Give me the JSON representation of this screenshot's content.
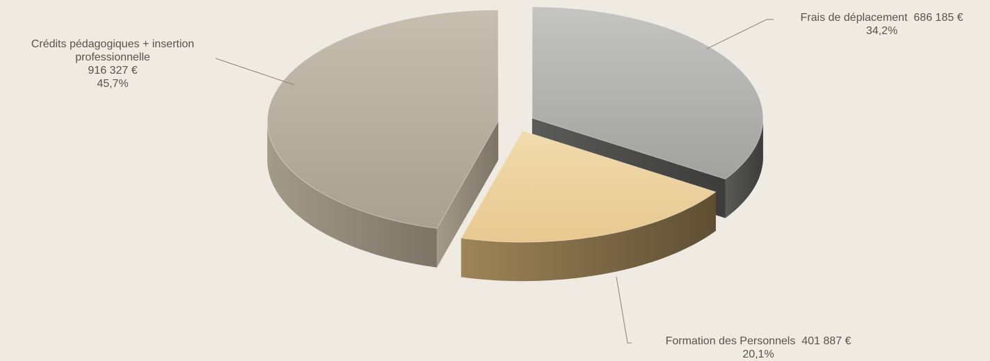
{
  "chart_data": {
    "type": "pie",
    "style": "3d-exploded",
    "slices": [
      {
        "name_lines": [
          "Crédits pédagogiques + insertion",
          "professionnelle"
        ],
        "amount": "916 327 €",
        "percent_label": "45,7%",
        "value": 916327,
        "percent": 45.7,
        "color": "#bcb2a3"
      },
      {
        "name_lines": [
          "Frais de déplacement"
        ],
        "amount": "686 185 €",
        "percent_label": "34,2%",
        "value": 686185,
        "percent": 34.2,
        "color": "#b5b5b3"
      },
      {
        "name_lines": [
          "Formation des Personnels"
        ],
        "amount": "401 887 €",
        "percent_label": "20,1%",
        "value": 401887,
        "percent": 20.1,
        "color": "#ecd19f"
      }
    ]
  }
}
